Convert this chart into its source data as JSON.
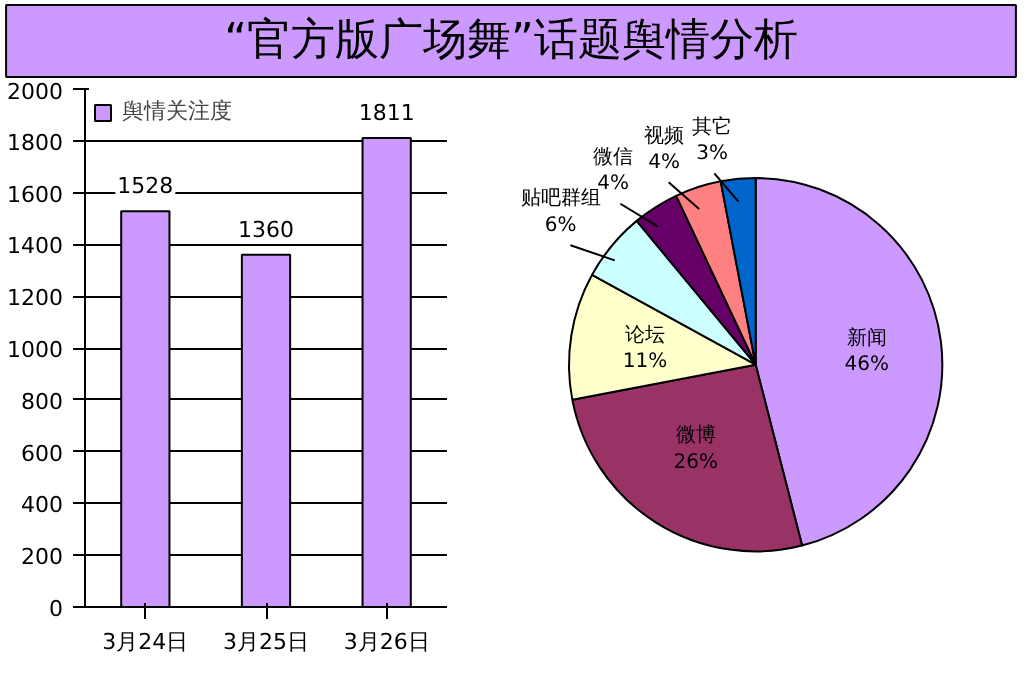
{
  "chart_data": [
    {
      "type": "bar",
      "title": "“官方版广场舞”话题舆情分析",
      "categories": [
        "3月24日",
        "3月25日",
        "3月26日"
      ],
      "series": [
        {
          "name": "舆情关注度",
          "color": "#cc99ff",
          "values": [
            1528,
            1360,
            1811
          ]
        }
      ],
      "ylim": [
        0,
        2000
      ],
      "yticks": [
        0,
        200,
        400,
        600,
        800,
        1000,
        1200,
        1400,
        1600,
        1800,
        2000
      ],
      "grid": "y",
      "legend": "top left",
      "data_labels": true
    },
    {
      "type": "pie",
      "categories": [
        "新闻",
        "微博",
        "论坛",
        "贴吧群组",
        "微信",
        "视频",
        "其它"
      ],
      "values": [
        46,
        26,
        11,
        6,
        4,
        4,
        3
      ],
      "value_labels": [
        "46%",
        "26%",
        "11%",
        "6%",
        "4%",
        "4%",
        "3%"
      ],
      "colors": [
        "#cc99ff",
        "#993366",
        "#ffffcc",
        "#ccffff",
        "#660066",
        "#ff8080",
        "#0066cc"
      ]
    }
  ]
}
